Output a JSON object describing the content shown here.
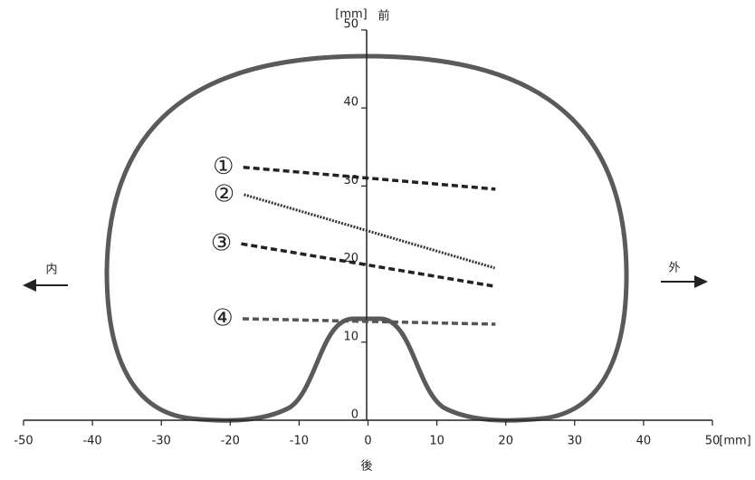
{
  "chart_data": {
    "type": "line",
    "xlabel": "[mm]",
    "ylabel": "[mm]",
    "annotations": {
      "front": "前",
      "back": "後",
      "inner": "内",
      "outer": "外"
    },
    "xlim": [
      -50,
      50
    ],
    "xticks": [
      -50,
      -40,
      -30,
      -20,
      -10,
      0,
      10,
      20,
      30,
      40,
      50
    ],
    "ylim": [
      0,
      50
    ],
    "yticks": [
      0,
      10,
      20,
      30,
      40,
      50
    ],
    "series": [
      {
        "name": "①",
        "color": "#222222",
        "style": "dashed",
        "x": [
          -18.1,
          18.5
        ],
        "values": [
          32.4,
          29.6
        ]
      },
      {
        "name": "②",
        "color": "#333333",
        "style": "dotted",
        "x": [
          -18.0,
          18.4
        ],
        "values": [
          28.9,
          19.5
        ]
      },
      {
        "name": "③",
        "color": "#222222",
        "style": "dashed",
        "x": [
          -18.4,
          18.1
        ],
        "values": [
          22.6,
          17.2
        ]
      },
      {
        "name": "④",
        "color": "#555555",
        "style": "dashed",
        "x": [
          -18.2,
          18.5
        ],
        "values": [
          13.0,
          12.3
        ]
      }
    ]
  }
}
